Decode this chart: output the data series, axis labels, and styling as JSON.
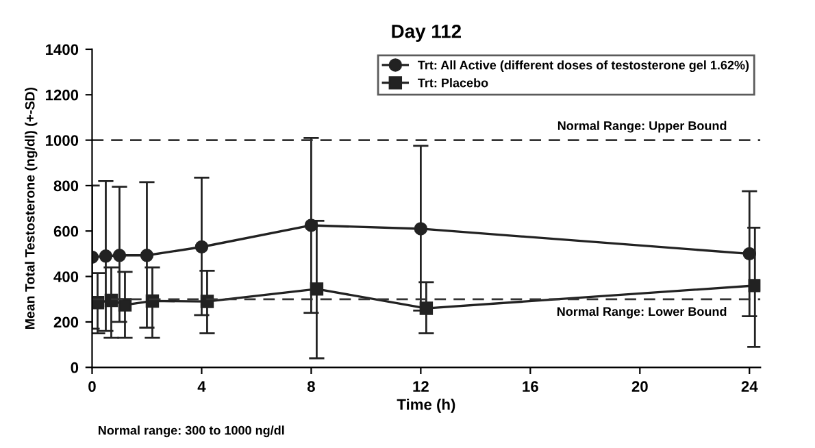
{
  "chart_data": {
    "type": "line",
    "title": "Day 112",
    "xlabel": "Time (h)",
    "ylabel": "Mean Total Testosterone (ng/dl) (+-SD)",
    "xlim": [
      0,
      24.4
    ],
    "xticks": [
      0,
      4,
      8,
      12,
      16,
      20,
      24
    ],
    "ylim": [
      0,
      1400
    ],
    "yticks": [
      0,
      200,
      400,
      600,
      800,
      1000,
      1200,
      1400
    ],
    "grid": false,
    "legend": "top right",
    "line_style": "solid",
    "series": [
      {
        "name": "Trt: All Active (different doses of testosterone gel 1.62%)",
        "color": "#222222",
        "marker": "circle",
        "x": [
          0,
          0.5,
          1,
          2,
          4,
          8,
          12,
          24
        ],
        "values": [
          485,
          490,
          493,
          493,
          530,
          625,
          610,
          500
        ],
        "errors": [
          [
            170,
            800
          ],
          [
            160,
            820
          ],
          [
            200,
            795
          ],
          [
            175,
            815
          ],
          [
            230,
            835
          ],
          [
            240,
            1010
          ],
          [
            250,
            975
          ],
          [
            225,
            775
          ]
        ]
      },
      {
        "name": "Trt: Placebo",
        "color": "#222222",
        "marker": "square",
        "x": [
          0.2,
          0.7,
          1.2,
          2.2,
          4.2,
          8.2,
          12.2,
          24.2
        ],
        "values": [
          285,
          295,
          275,
          292,
          290,
          345,
          260,
          360
        ],
        "errors": [
          [
            150,
            415
          ],
          [
            130,
            440
          ],
          [
            130,
            420
          ],
          [
            130,
            440
          ],
          [
            150,
            425
          ],
          [
            40,
            645
          ],
          [
            150,
            375
          ],
          [
            90,
            615
          ]
        ]
      }
    ],
    "ref_lines": [
      {
        "axis": "y",
        "value": 1000,
        "label": "Normal Range: Upper Bound",
        "line_style": "dashed",
        "color": "#333333"
      },
      {
        "axis": "y",
        "value": 300,
        "label": "Normal Range: Lower Bound",
        "line_style": "dashed",
        "color": "#333333"
      }
    ],
    "annotations": [
      "Normal range: 300 to 1000 ng/dl"
    ]
  }
}
